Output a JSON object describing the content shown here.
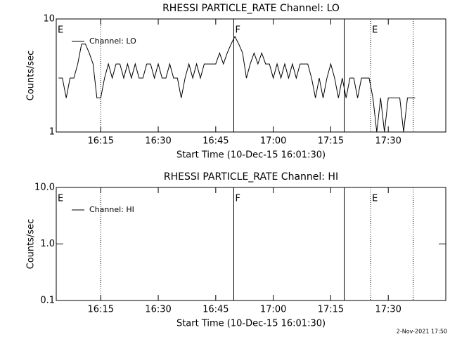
{
  "chart_data": [
    {
      "type": "line",
      "title": "RHESSI PARTICLE_RATE Channel: LO",
      "xlabel": "Start Time (10-Dec-15 16:01:30)",
      "ylabel": "Counts/sec",
      "log_y": true,
      "legend": "upper left",
      "xlim": [
        3.4,
        105
      ],
      "ylim": [
        1,
        10
      ],
      "xticks": [
        {
          "value": 15,
          "label": "16:15"
        },
        {
          "value": 30,
          "label": "16:30"
        },
        {
          "value": 45,
          "label": "16:45"
        },
        {
          "value": 60,
          "label": "17:00"
        },
        {
          "value": 75,
          "label": "17:15"
        },
        {
          "value": 90,
          "label": "17:30"
        }
      ],
      "yticks": [
        1,
        10
      ],
      "vlines": [
        {
          "x": 15,
          "style": "dotted"
        },
        {
          "x": 49.7,
          "style": "solid"
        },
        {
          "x": 78.5,
          "style": "solid"
        },
        {
          "x": 85.4,
          "style": "dotted"
        },
        {
          "x": 96.5,
          "style": "dotted"
        }
      ],
      "annotations": [
        {
          "x": 3.4,
          "text": "E"
        },
        {
          "x": 49.7,
          "text": "F"
        },
        {
          "x": 85.4,
          "text": "E"
        }
      ],
      "x": [
        4,
        5,
        6,
        7,
        8,
        9,
        10,
        11,
        12,
        13,
        14,
        15,
        16,
        17,
        18,
        19,
        20,
        21,
        22,
        23,
        24,
        25,
        26,
        27,
        28,
        29,
        30,
        31,
        32,
        33,
        34,
        35,
        36,
        37,
        38,
        39,
        40,
        41,
        42,
        43,
        44,
        45,
        46,
        47,
        48,
        49,
        50,
        51,
        52,
        53,
        54,
        55,
        56,
        57,
        58,
        59,
        60,
        61,
        62,
        63,
        64,
        65,
        66,
        67,
        68,
        69,
        70,
        71,
        72,
        73,
        74,
        75,
        76,
        77,
        78,
        79,
        80,
        81,
        82,
        83,
        84,
        85,
        86,
        87,
        88,
        89,
        90,
        91,
        92,
        93,
        94,
        95,
        96,
        97
      ],
      "series": [
        {
          "name": "Channel: LO",
          "color": "#000000",
          "values": [
            3,
            3,
            2,
            3,
            3,
            4,
            6,
            6,
            5,
            4,
            2,
            2,
            3,
            4,
            3,
            4,
            4,
            3,
            4,
            3,
            4,
            3,
            3,
            4,
            4,
            3,
            4,
            3,
            3,
            4,
            3,
            3,
            2,
            3,
            4,
            3,
            4,
            3,
            4,
            4,
            4,
            4,
            5,
            4,
            5,
            6,
            7,
            6,
            5,
            3,
            4,
            5,
            4,
            5,
            4,
            4,
            3,
            4,
            3,
            4,
            3,
            4,
            3,
            4,
            4,
            4,
            3,
            2,
            3,
            2,
            3,
            4,
            3,
            2,
            3,
            2,
            3,
            3,
            2,
            3,
            3,
            3,
            2,
            1,
            2,
            1,
            2,
            2,
            2,
            2,
            1,
            2,
            2,
            2
          ]
        }
      ]
    },
    {
      "type": "line",
      "title": "RHESSI PARTICLE_RATE Channel: HI",
      "xlabel": "Start Time (10-Dec-15 16:01:30)",
      "ylabel": "Counts/sec",
      "log_y": true,
      "legend": "upper left",
      "xlim": [
        3.4,
        105
      ],
      "ylim": [
        0.1,
        10
      ],
      "xticks": [
        {
          "value": 15,
          "label": "16:15"
        },
        {
          "value": 30,
          "label": "16:30"
        },
        {
          "value": 45,
          "label": "16:45"
        },
        {
          "value": 60,
          "label": "17:00"
        },
        {
          "value": 75,
          "label": "17:15"
        },
        {
          "value": 90,
          "label": "17:30"
        }
      ],
      "yticks": [
        0.1,
        {
          "value": 1,
          "label": "1.0"
        },
        {
          "value": 10,
          "label": "10.0"
        }
      ],
      "vlines": [
        {
          "x": 15,
          "style": "dotted"
        },
        {
          "x": 49.7,
          "style": "solid"
        },
        {
          "x": 78.5,
          "style": "solid"
        },
        {
          "x": 85.4,
          "style": "dotted"
        },
        {
          "x": 96.5,
          "style": "dotted"
        }
      ],
      "annotations": [
        {
          "x": 3.4,
          "text": "E"
        },
        {
          "x": 49.7,
          "text": "F"
        },
        {
          "x": 85.4,
          "text": "E"
        }
      ],
      "x": [],
      "series": [
        {
          "name": "Channel: HI",
          "color": "#000000",
          "values": []
        }
      ]
    }
  ],
  "footer": "2-Nov-2021 17:50"
}
